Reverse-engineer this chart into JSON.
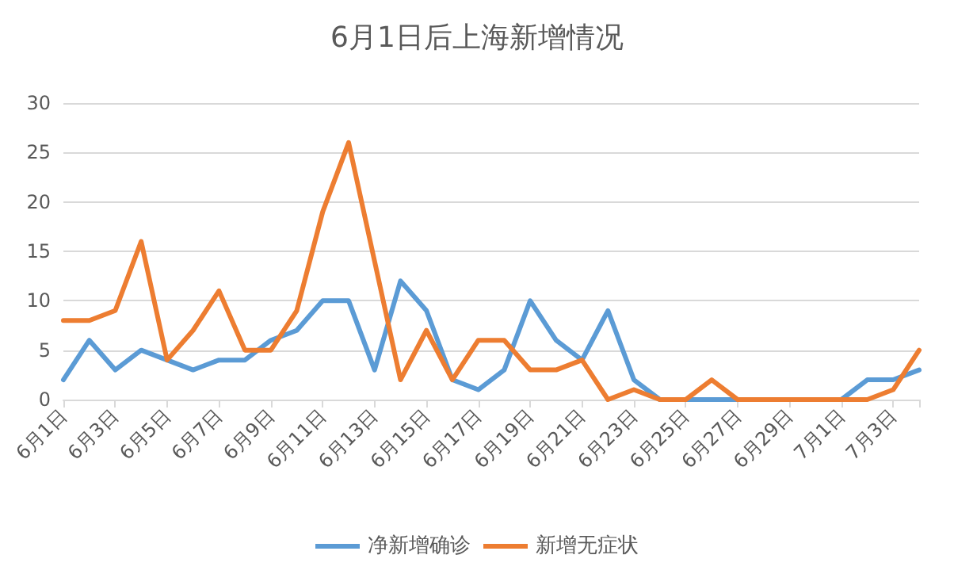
{
  "chart_data": {
    "type": "line",
    "title": "6月1日后上海新增情况",
    "categories": [
      "6月1日",
      null,
      "6月3日",
      null,
      "6月5日",
      null,
      "6月7日",
      null,
      "6月9日",
      null,
      "6月11日",
      null,
      "6月13日",
      null,
      "6月15日",
      null,
      "6月17日",
      null,
      "6月19日",
      null,
      "6月21日",
      null,
      "6月23日",
      null,
      "6月25日",
      null,
      "6月27日",
      null,
      "6月29日",
      null,
      "7月1日",
      null,
      "7月3日",
      null
    ],
    "series": [
      {
        "name": "净新增确诊",
        "color": "#5b9bd5",
        "values": [
          2,
          6,
          3,
          5,
          4,
          3,
          4,
          4,
          6,
          7,
          10,
          10,
          3,
          12,
          9,
          2,
          1,
          3,
          10,
          6,
          4,
          9,
          2,
          0,
          0,
          0,
          0,
          0,
          0,
          0,
          0,
          2,
          2,
          3
        ]
      },
      {
        "name": "新增无症状",
        "color": "#ed7d31",
        "values": [
          8,
          8,
          9,
          16,
          4,
          7,
          11,
          5,
          5,
          9,
          19,
          26,
          14,
          2,
          7,
          2,
          6,
          6,
          3,
          3,
          4,
          0,
          1,
          0,
          0,
          2,
          0,
          0,
          0,
          0,
          0,
          0,
          1,
          5
        ]
      }
    ],
    "ylim": [
      0,
      30
    ],
    "yticks": [
      0,
      5,
      10,
      15,
      20,
      25,
      30
    ],
    "grid": "y",
    "legend": "bottom",
    "marker": "none",
    "line_style": "solid"
  }
}
